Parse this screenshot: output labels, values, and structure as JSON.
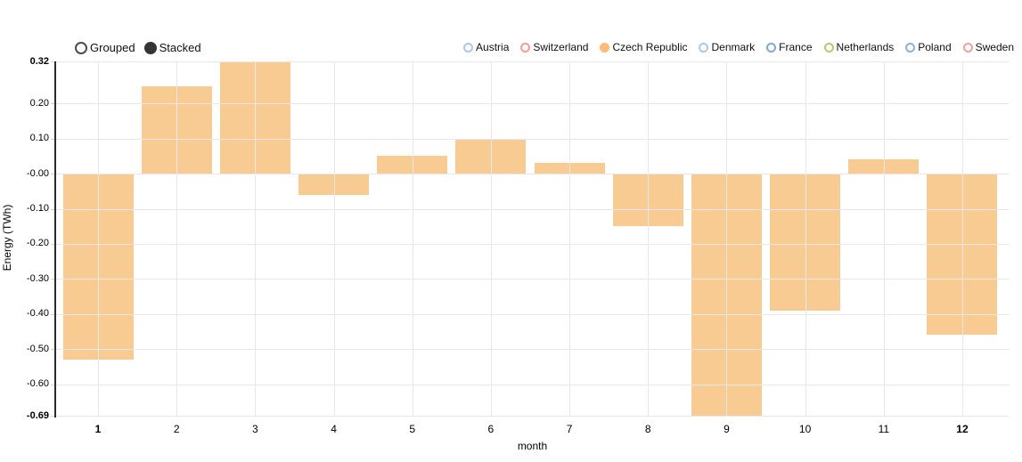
{
  "controls": {
    "grouped_label": "Grouped",
    "stacked_label": "Stacked",
    "selected": "Stacked"
  },
  "legend": {
    "items": [
      {
        "label": "Austria",
        "color": "#aec7e8",
        "active": false
      },
      {
        "label": "Switzerland",
        "color": "#ff9896",
        "active": false
      },
      {
        "label": "Czech Republic",
        "color": "#ffbb78",
        "active": true
      },
      {
        "label": "Denmark",
        "color": "#aec7e8",
        "active": false
      },
      {
        "label": "France",
        "color": "#7fa8d4",
        "active": false
      },
      {
        "label": "Netherlands",
        "color": "#b2cc71",
        "active": false
      },
      {
        "label": "Poland",
        "color": "#8cb0d9",
        "active": false
      },
      {
        "label": "Sweden",
        "color": "#f2a09a",
        "active": false
      }
    ]
  },
  "chart_data": {
    "type": "bar",
    "mode": "stacked",
    "title": "",
    "xlabel": "month",
    "ylabel": "Energy (TWh)",
    "categories": [
      "1",
      "2",
      "3",
      "4",
      "5",
      "6",
      "7",
      "8",
      "9",
      "10",
      "11",
      "12"
    ],
    "series": [
      {
        "name": "Czech Republic",
        "color": "#f7cb92",
        "values": [
          -0.53,
          0.25,
          0.32,
          -0.06,
          0.05,
          0.1,
          0.03,
          -0.15,
          -0.69,
          -0.39,
          0.04,
          -0.46
        ]
      }
    ],
    "ylim": [
      -0.69,
      0.32
    ],
    "yticks": [
      0.32,
      0.2,
      0.1,
      0.0,
      -0.1,
      -0.2,
      -0.3,
      -0.4,
      -0.5,
      -0.6,
      -0.69
    ],
    "ytick_labels": [
      "0.32",
      "0.20",
      "0.10",
      "-0.00",
      "-0.10",
      "-0.20",
      "-0.30",
      "-0.40",
      "-0.50",
      "-0.60",
      "-0.69"
    ],
    "bold_ytick_labels": [
      "0.32",
      "-0.69"
    ],
    "bold_xtick_labels": [
      "1",
      "12"
    ],
    "grid": true,
    "legend_position": "top-right",
    "gridline_color": "#e8e8e8",
    "bar_color": "#f7cb92"
  }
}
